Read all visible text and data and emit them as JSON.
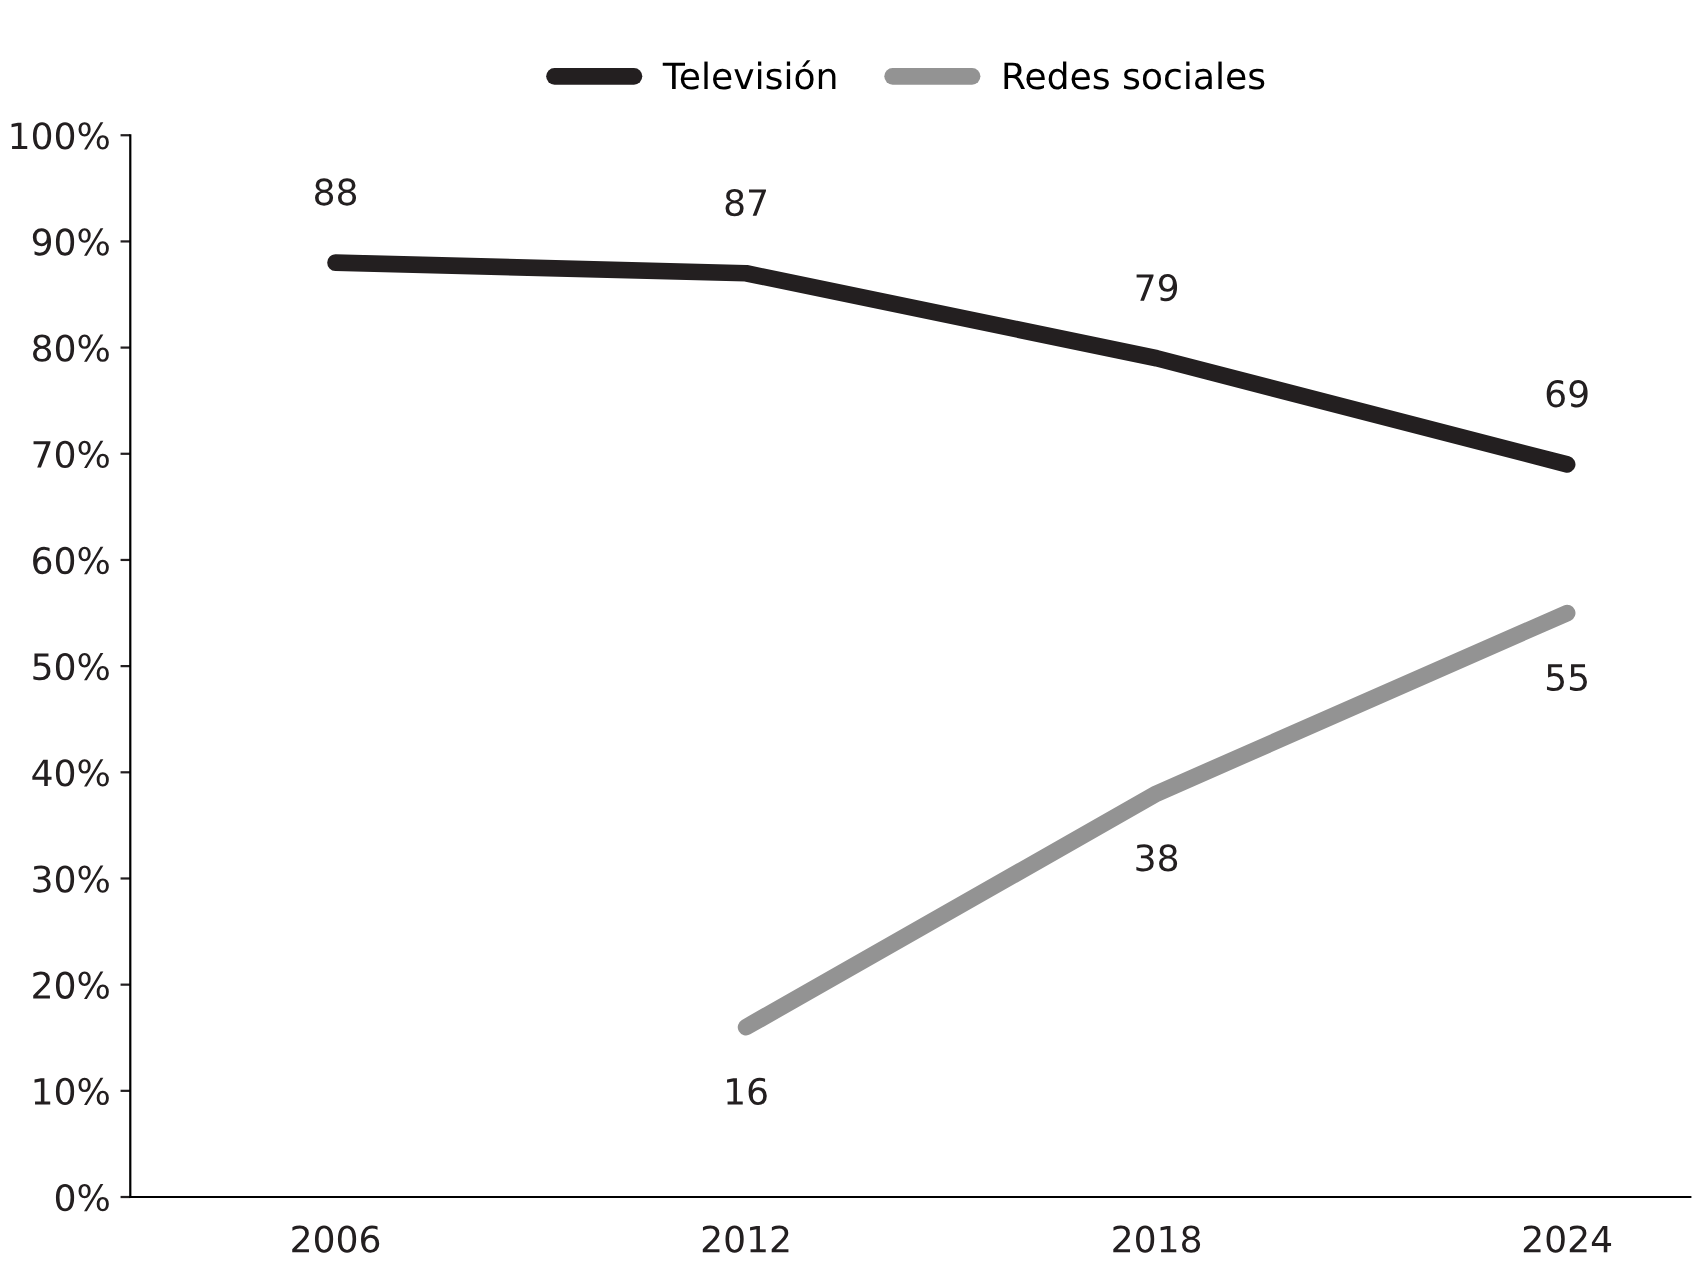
{
  "chart_data": {
    "type": "line",
    "categories": [
      "2006",
      "2012",
      "2018",
      "2024"
    ],
    "series": [
      {
        "name": "Televisión",
        "color": "#231f20",
        "values": [
          88,
          87,
          79,
          69
        ]
      },
      {
        "name": "Redes sociales",
        "color": "#939393",
        "values": [
          null,
          16,
          38,
          55
        ]
      }
    ],
    "ylim": [
      0,
      100
    ],
    "yticks": [
      {
        "value": 0,
        "label": "0%"
      },
      {
        "value": 10,
        "label": "10%"
      },
      {
        "value": 20,
        "label": "20%"
      },
      {
        "value": 30,
        "label": "30%"
      },
      {
        "value": 40,
        "label": "40%"
      },
      {
        "value": 50,
        "label": "50%"
      },
      {
        "value": 60,
        "label": "60%"
      },
      {
        "value": 70,
        "label": "70%"
      },
      {
        "value": 80,
        "label": "80%"
      },
      {
        "value": 90,
        "label": "90%"
      },
      {
        "value": 100,
        "label": "100%"
      }
    ],
    "data_labels": true,
    "grid": false,
    "legend": "top",
    "marker": "none",
    "line_style": "solid"
  }
}
